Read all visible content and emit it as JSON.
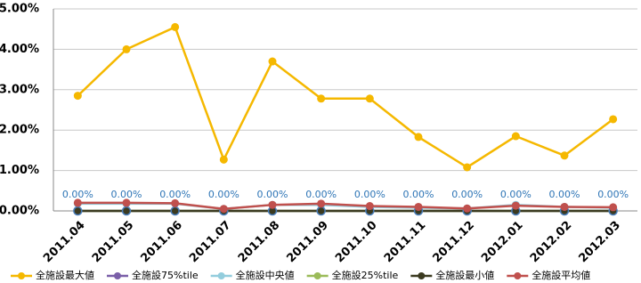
{
  "chart_data": {
    "type": "line",
    "categories": [
      "2011.04",
      "2011.05",
      "2011.06",
      "2011.07",
      "2011.08",
      "2011.09",
      "2011.10",
      "2011.11",
      "2011.12",
      "2012.01",
      "2012.02",
      "2012.03"
    ],
    "series": [
      {
        "name": "全施設最大値",
        "color": "#f5b800",
        "values": [
          2.85,
          4.0,
          4.55,
          1.27,
          3.7,
          2.78,
          2.78,
          1.83,
          1.08,
          1.85,
          1.37,
          2.27
        ]
      },
      {
        "name": "全施設75%tile",
        "color": "#7a5fa8",
        "values": [
          0,
          0,
          0,
          0,
          0,
          0,
          0,
          0,
          0,
          0,
          0,
          0
        ],
        "value_labels": [
          "0.00%",
          "0.00%",
          "0.00%",
          "0.00%",
          "0.00%",
          "0.00%",
          "0.00%",
          "0.00%",
          "0.00%",
          "0.00%",
          "0.00%",
          "0.00%"
        ]
      },
      {
        "name": "全施設中央値",
        "color": "#93cddd",
        "values": [
          0.18,
          0.18,
          0.18,
          0.05,
          0.15,
          0.15,
          0.1,
          0.08,
          0.06,
          0.15,
          0.1,
          0.08
        ]
      },
      {
        "name": "全施設25%tile",
        "color": "#9bbb59",
        "values": [
          0,
          0,
          0,
          0,
          0,
          0,
          0,
          0,
          0,
          0,
          0,
          0
        ]
      },
      {
        "name": "全施設最小値",
        "color": "#3b3a20",
        "values": [
          0,
          0,
          0,
          0,
          0,
          0,
          0,
          0,
          0,
          0,
          0,
          0
        ]
      },
      {
        "name": "全施設平均値",
        "color": "#c0504d",
        "values": [
          0.2,
          0.2,
          0.19,
          0.05,
          0.15,
          0.18,
          0.12,
          0.1,
          0.06,
          0.13,
          0.1,
          0.09
        ]
      }
    ],
    "ylim": [
      0,
      5
    ],
    "yticks": [
      {
        "value": 0,
        "label": "0.00%"
      },
      {
        "value": 1,
        "label": "1.00%"
      },
      {
        "value": 2,
        "label": "2.00%"
      },
      {
        "value": 3,
        "label": "3.00%"
      },
      {
        "value": 4,
        "label": "4.00%"
      },
      {
        "value": 5,
        "label": "5.00%"
      }
    ],
    "grid": true,
    "legend": "bottom"
  }
}
